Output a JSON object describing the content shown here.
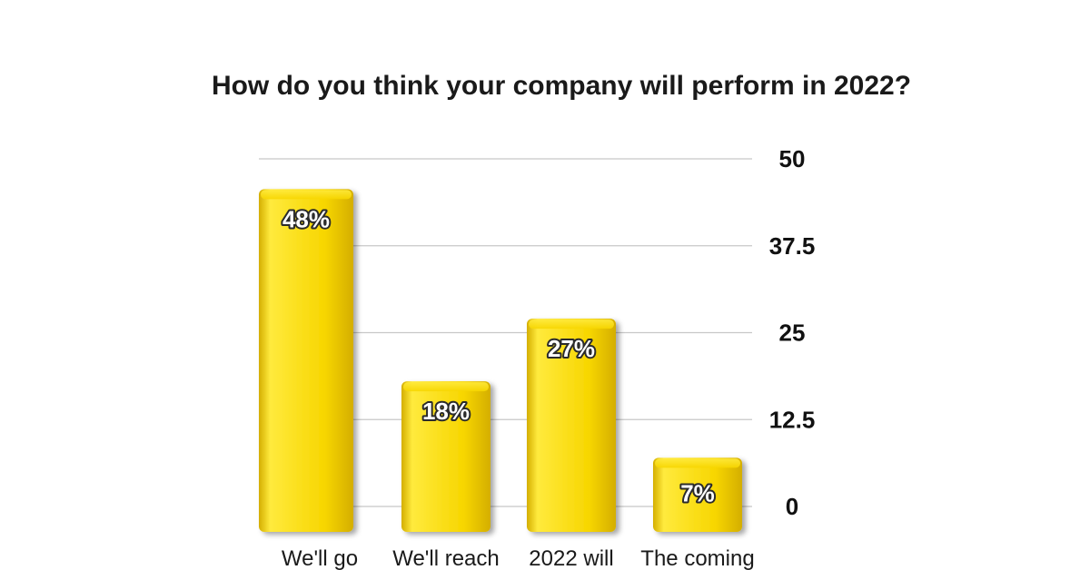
{
  "chart_data": {
    "type": "bar",
    "title": "How do you think your company will perform in 2022?",
    "categories": [
      "We'll go",
      "We'll reach",
      "2022 will",
      "The coming"
    ],
    "values": [
      48,
      18,
      27,
      7
    ],
    "data_labels": [
      "48%",
      "18%",
      "27%",
      "7%"
    ],
    "ylim": [
      0,
      50
    ],
    "yticks": [
      0,
      12.5,
      25,
      37.5,
      50
    ],
    "ytick_labels": [
      "0",
      "12.5",
      "25",
      "37.5",
      "50"
    ],
    "y_axis_side": "right",
    "grid": true,
    "xlabel": "",
    "ylabel": "",
    "bar_color": "#f7d600",
    "bar_highlight_color": "#ffea3d",
    "bar_shadow_color": "#d4ae00"
  }
}
